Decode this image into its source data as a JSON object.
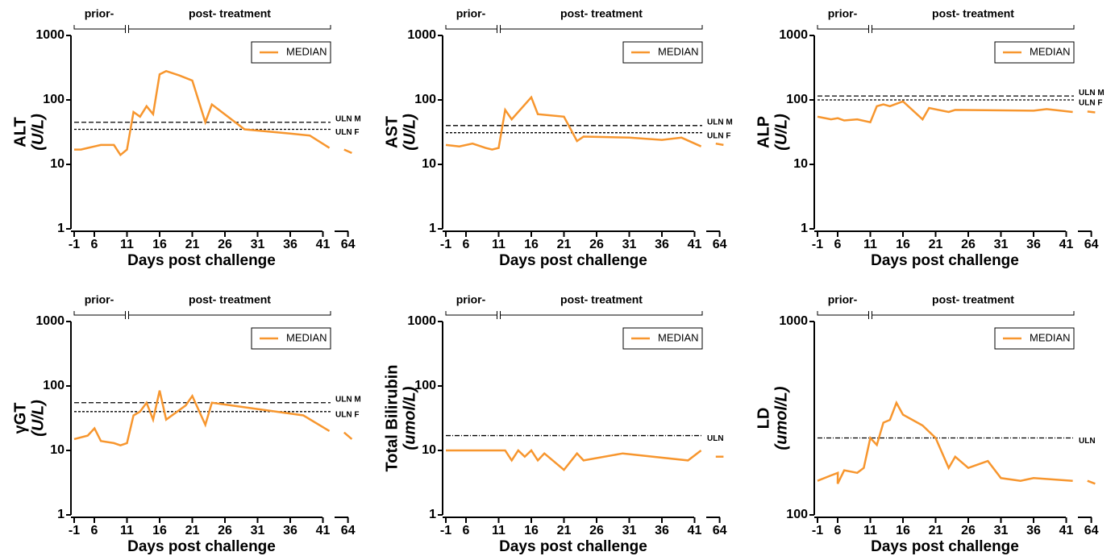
{
  "chart_data": [
    {
      "type": "line",
      "y_title": "ALT",
      "y_unit": "(U/L)",
      "x_title": "Days post challenge",
      "prior_label": "prior-",
      "post_label": "post- treatment",
      "log_y": true,
      "ylim": [
        1,
        1000
      ],
      "yticks": [
        1,
        10,
        100,
        1000
      ],
      "xticks": [
        -1,
        6,
        11,
        16,
        21,
        26,
        31,
        36,
        41,
        64
      ],
      "x": [
        -1,
        1,
        3,
        5,
        7,
        9,
        10,
        11,
        12,
        13,
        14,
        15,
        16,
        17,
        19,
        21,
        23,
        24,
        29,
        36,
        39,
        42,
        62,
        66
      ],
      "series": [
        {
          "name": "MEDIAN",
          "color": "#f7962e",
          "values": [
            17,
            17,
            18,
            19,
            20,
            20,
            14,
            17,
            65,
            55,
            80,
            60,
            250,
            280,
            240,
            200,
            45,
            85,
            35,
            30,
            28,
            18,
            17,
            15
          ]
        }
      ],
      "reference_lines": [
        {
          "label": "ULN M",
          "value": 45,
          "style": "dashed"
        },
        {
          "label": "ULN F",
          "value": 35,
          "style": "dotted"
        }
      ]
    },
    {
      "type": "line",
      "y_title": "AST",
      "y_unit": "(U/L)",
      "x_title": "Days post challenge",
      "prior_label": "prior-",
      "post_label": "post- treatment",
      "log_y": true,
      "ylim": [
        1,
        1000
      ],
      "yticks": [
        1,
        10,
        100,
        1000
      ],
      "xticks": [
        -1,
        6,
        11,
        16,
        21,
        26,
        31,
        36,
        41,
        64
      ],
      "x": [
        -1,
        3,
        7,
        9,
        10,
        11,
        12,
        13,
        16,
        17,
        21,
        23,
        24,
        31,
        36,
        39,
        42,
        62,
        66
      ],
      "series": [
        {
          "name": "MEDIAN",
          "color": "#f7962e",
          "values": [
            20,
            19,
            21,
            18,
            17,
            18,
            70,
            50,
            110,
            60,
            55,
            23,
            27,
            26,
            24,
            26,
            19,
            21,
            20
          ]
        }
      ],
      "reference_lines": [
        {
          "label": "ULN M",
          "value": 40,
          "style": "dashed"
        },
        {
          "label": "ULN F",
          "value": 31,
          "style": "dotted"
        }
      ]
    },
    {
      "type": "line",
      "y_title": "ALP",
      "y_unit": "(U/L)",
      "x_title": "Days post challenge",
      "prior_label": "prior-",
      "post_label": "post- treatment",
      "log_y": true,
      "ylim": [
        1,
        1000
      ],
      "yticks": [
        1,
        10,
        100,
        1000
      ],
      "xticks": [
        -1,
        6,
        11,
        16,
        21,
        26,
        31,
        36,
        41,
        64
      ],
      "x": [
        -1,
        3,
        5,
        7,
        9,
        11,
        12,
        13,
        14,
        16,
        19,
        20,
        23,
        24,
        36,
        38,
        42,
        62,
        66
      ],
      "series": [
        {
          "name": "MEDIAN",
          "color": "#f7962e",
          "values": [
            55,
            50,
            52,
            48,
            50,
            45,
            80,
            85,
            80,
            95,
            50,
            75,
            65,
            70,
            68,
            72,
            65,
            66,
            64
          ]
        }
      ],
      "reference_lines": [
        {
          "label": "ULN M",
          "value": 115,
          "style": "dashed"
        },
        {
          "label": "ULN F",
          "value": 100,
          "style": "dotted"
        }
      ]
    },
    {
      "type": "line",
      "y_title": "γGT",
      "y_unit": "(U/L)",
      "x_title": "Days post challenge",
      "prior_label": "prior-",
      "post_label": "post- treatment",
      "log_y": true,
      "ylim": [
        1,
        1000
      ],
      "yticks": [
        1,
        10,
        100,
        1000
      ],
      "xticks": [
        -1,
        6,
        11,
        16,
        21,
        26,
        31,
        36,
        41,
        64
      ],
      "x": [
        -1,
        3,
        5,
        7,
        9,
        10,
        11,
        12,
        13,
        14,
        15,
        16,
        17,
        20,
        21,
        23,
        24,
        38,
        42,
        62,
        66
      ],
      "series": [
        {
          "name": "MEDIAN",
          "color": "#f7962e",
          "values": [
            15,
            17,
            22,
            14,
            13,
            12,
            13,
            35,
            40,
            55,
            30,
            85,
            30,
            50,
            70,
            25,
            55,
            35,
            20,
            19,
            15
          ]
        }
      ],
      "reference_lines": [
        {
          "label": "ULN M",
          "value": 55,
          "style": "dashed"
        },
        {
          "label": "ULN F",
          "value": 40,
          "style": "dotted"
        }
      ]
    },
    {
      "type": "line",
      "y_title": "Total Bilirubin",
      "y_unit": "(umol/L)",
      "x_title": "Days post challenge",
      "prior_label": "prior-",
      "post_label": "post- treatment",
      "log_y": true,
      "ylim": [
        1,
        1000
      ],
      "yticks": [
        1,
        10,
        100,
        1000
      ],
      "xticks": [
        -1,
        6,
        11,
        16,
        21,
        26,
        31,
        36,
        41,
        64
      ],
      "x": [
        -1,
        11,
        12,
        13,
        14,
        15,
        16,
        17,
        18,
        21,
        23,
        24,
        30,
        40,
        42,
        62,
        66
      ],
      "series": [
        {
          "name": "MEDIAN",
          "color": "#f7962e",
          "values": [
            10,
            10,
            10,
            7,
            10,
            8,
            10,
            7,
            9,
            5,
            9,
            7,
            9,
            7,
            10,
            8,
            8
          ]
        }
      ],
      "reference_lines": [
        {
          "label": "ULN",
          "value": 17,
          "style": "dashdot"
        }
      ]
    },
    {
      "type": "line",
      "y_title": "LD",
      "y_unit": "(umol/L)",
      "x_title": "Days post challenge",
      "prior_label": "prior-",
      "post_label": "post- treatment",
      "log_y": true,
      "ylim": [
        100,
        1000
      ],
      "yticks": [
        100,
        1000
      ],
      "xticks": [
        -1,
        6,
        11,
        16,
        21,
        26,
        31,
        36,
        41,
        64
      ],
      "x": [
        -1,
        3,
        5,
        6,
        7,
        9,
        10,
        11,
        12,
        13,
        14,
        15,
        16,
        19,
        21,
        23,
        24,
        26,
        29,
        31,
        34,
        36,
        42,
        62,
        66
      ],
      "series": [
        {
          "name": "MEDIAN",
          "color": "#f7962e",
          "values": [
            150,
            160,
            165,
            145,
            170,
            165,
            175,
            250,
            230,
            300,
            310,
            380,
            330,
            290,
            250,
            175,
            200,
            175,
            190,
            155,
            150,
            155,
            150,
            150,
            145
          ]
        }
      ],
      "reference_lines": [
        {
          "label": "ULN",
          "value": 250,
          "style": "dashdot"
        }
      ]
    }
  ]
}
